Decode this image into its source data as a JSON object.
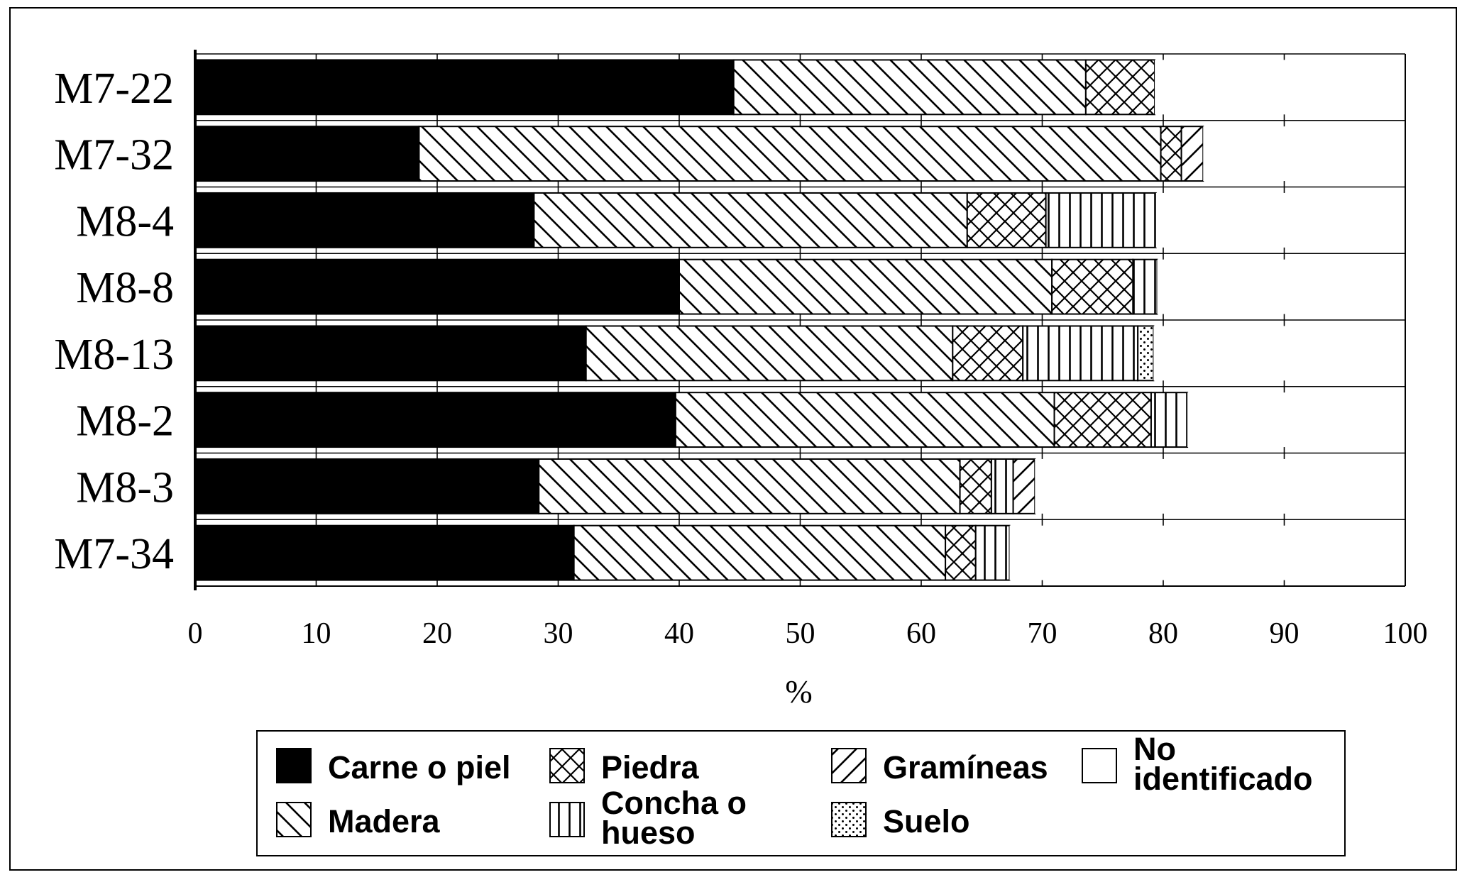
{
  "chart_data": {
    "type": "bar",
    "orientation": "horizontal",
    "stacked": true,
    "title": "",
    "xlabel": "%",
    "ylabel": "",
    "xlim": [
      0,
      100
    ],
    "xticks": [
      0,
      10,
      20,
      30,
      40,
      50,
      60,
      70,
      80,
      90,
      100
    ],
    "grid": true,
    "legend_position": "bottom",
    "categories": [
      "M7-22",
      "M7-32",
      "M8-4",
      "M8-8",
      "M8-13",
      "M8-2",
      "M8-3",
      "M7-34"
    ],
    "series": [
      {
        "name": "Carne o piel",
        "pattern": "solid",
        "values": [
          44.5,
          18.5,
          28.0,
          40.0,
          32.3,
          39.7,
          28.4,
          31.3
        ]
      },
      {
        "name": "Madera",
        "pattern": "backslash",
        "values": [
          29.1,
          61.3,
          35.8,
          30.8,
          30.3,
          31.3,
          34.8,
          30.7
        ]
      },
      {
        "name": "Piedra",
        "pattern": "crosshatch",
        "values": [
          5.7,
          1.7,
          6.5,
          6.7,
          5.8,
          8.0,
          2.6,
          2.5
        ]
      },
      {
        "name": "Concha o hueso",
        "pattern": "vertical",
        "values": [
          0,
          0,
          9.1,
          2.0,
          9.5,
          3.0,
          1.8,
          2.8
        ]
      },
      {
        "name": "Gramíneas",
        "pattern": "slash",
        "values": [
          0,
          1.8,
          0,
          0,
          0,
          0,
          1.8,
          0
        ]
      },
      {
        "name": "Suelo",
        "pattern": "dots",
        "values": [
          0,
          0,
          0,
          0,
          1.3,
          0,
          0,
          0
        ]
      },
      {
        "name": "No identificado",
        "pattern": "blank",
        "values": [
          20.7,
          16.7,
          20.6,
          20.5,
          20.8,
          18.0,
          30.6,
          32.7
        ]
      }
    ]
  },
  "legend": {
    "items": [
      {
        "label": "Carne o piel",
        "pattern": "solid"
      },
      {
        "label": "Piedra",
        "pattern": "crosshatch"
      },
      {
        "label": "Gramíneas",
        "pattern": "slash"
      },
      {
        "label": "No identificado",
        "pattern": "blank"
      },
      {
        "label": "Madera",
        "pattern": "backslash"
      },
      {
        "label": "Concha o hueso",
        "pattern": "vertical"
      },
      {
        "label": "Suelo",
        "pattern": "dots"
      }
    ]
  }
}
